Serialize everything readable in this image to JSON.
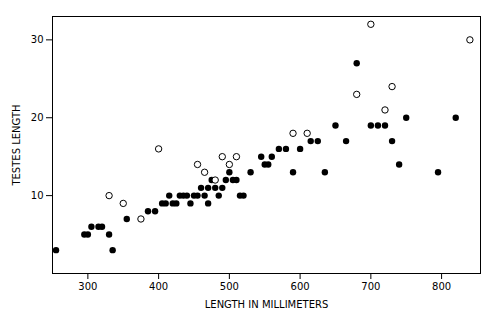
{
  "chart_data": {
    "type": "scatter",
    "xlabel": "LENGTH IN MILLIMETERS",
    "ylabel": "TESTES LENGTH",
    "xlim": [
      250,
      855
    ],
    "ylim": [
      0,
      33
    ],
    "xticks": [
      300,
      400,
      500,
      600,
      700,
      800
    ],
    "yticks": [
      10,
      20,
      30
    ],
    "grid": false,
    "series": [
      {
        "color": "black",
        "marker": "filled",
        "x": [
          255,
          295,
          300,
          305,
          315,
          320,
          330,
          335,
          355,
          385,
          395,
          405,
          410,
          415,
          420,
          425,
          430,
          435,
          440,
          445,
          450,
          455,
          460,
          465,
          470,
          470,
          475,
          480,
          485,
          490,
          495,
          500,
          505,
          510,
          515,
          520,
          530,
          545,
          550,
          555,
          560,
          570,
          580,
          590,
          600,
          615,
          625,
          635,
          650,
          665,
          680,
          700,
          710,
          720,
          730,
          740,
          750,
          795,
          820
        ],
        "y": [
          3,
          5,
          5,
          6,
          6,
          6,
          5,
          3,
          7,
          8,
          8,
          9,
          9,
          10,
          9,
          9,
          10,
          10,
          10,
          9,
          10,
          10,
          11,
          10,
          11,
          9,
          12,
          11,
          10,
          11,
          12,
          13,
          12,
          12,
          10,
          10,
          13,
          15,
          14,
          14,
          15,
          16,
          16,
          13,
          16,
          17,
          17,
          13,
          19,
          17,
          27,
          19,
          19,
          19,
          17,
          14,
          20,
          13,
          20
        ]
      },
      {
        "color": "black",
        "marker": "open",
        "x": [
          330,
          350,
          375,
          400,
          455,
          465,
          480,
          490,
          500,
          510,
          590,
          610,
          680,
          700,
          720,
          730,
          840
        ],
        "y": [
          10,
          9,
          7,
          16,
          14,
          13,
          12,
          15,
          14,
          15,
          18,
          18,
          23,
          32,
          21,
          24,
          30
        ]
      }
    ]
  }
}
